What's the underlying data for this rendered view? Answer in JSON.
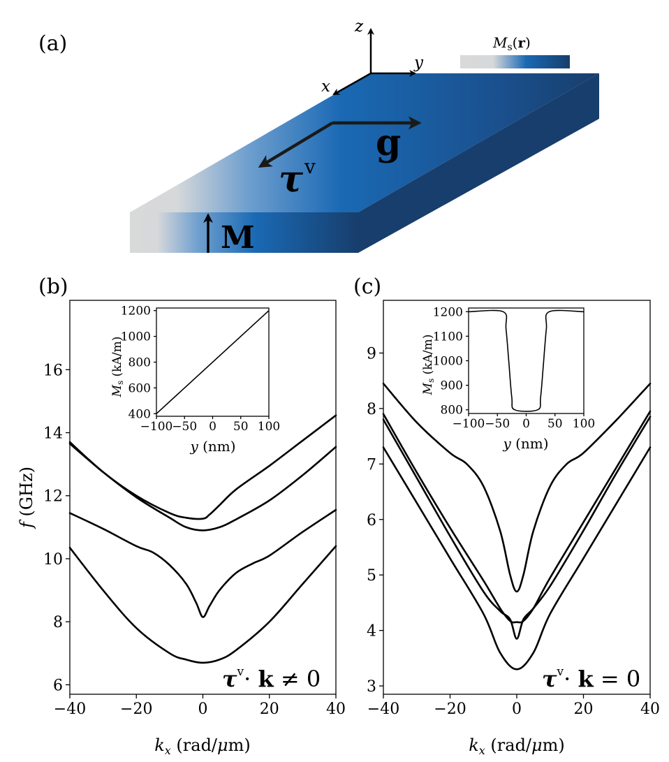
{
  "panels": {
    "a": {
      "label": "(a)",
      "axis_x": "x",
      "axis_y": "y",
      "axis_z": "z",
      "colorbar_label": "Ms(r)",
      "vector_g": "g",
      "vector_tau": "τ",
      "vector_tau_sup": "v",
      "vector_M": "M",
      "colors": {
        "light": "#d9d9d9",
        "mid": "#1763b0",
        "dark": "#173e6c"
      }
    },
    "b": {
      "label": "(b)",
      "annotation": "τv· k ≠ 0"
    },
    "c": {
      "label": "(c)",
      "annotation": "τv· k = 0"
    }
  },
  "chart_data": [
    {
      "id": "b",
      "type": "line",
      "xlabel": "kx (rad/μm)",
      "ylabel": "f (GHz)",
      "xlim": [
        -40,
        40
      ],
      "ylim": [
        5.7,
        18.2
      ],
      "xticks": [
        -40,
        -20,
        0,
        20,
        40
      ],
      "yticks": [
        6,
        8,
        10,
        12,
        14,
        16
      ],
      "series": [
        {
          "x": [
            -40,
            -30,
            -20,
            -10,
            -5,
            0,
            5,
            10,
            20,
            30,
            40
          ],
          "values": [
            10.35,
            9.0,
            7.8,
            7.0,
            6.8,
            6.7,
            6.8,
            7.1,
            8.0,
            9.2,
            10.4
          ]
        },
        {
          "x": [
            -40,
            -30,
            -20,
            -15,
            -10,
            -5,
            -2,
            0,
            2,
            5,
            10,
            15,
            20,
            30,
            40
          ],
          "values": [
            11.45,
            10.95,
            10.4,
            10.2,
            9.8,
            9.2,
            8.6,
            8.15,
            8.5,
            9.0,
            9.55,
            9.85,
            10.1,
            10.85,
            11.55
          ]
        },
        {
          "x": [
            -40,
            -30,
            -20,
            -10,
            -5,
            0,
            5,
            10,
            20,
            30,
            40
          ],
          "values": [
            13.65,
            12.75,
            11.95,
            11.3,
            11.0,
            10.9,
            11.0,
            11.25,
            11.85,
            12.65,
            13.55
          ]
        },
        {
          "x": [
            -40,
            -30,
            -20,
            -10,
            -5,
            0,
            2,
            5,
            10,
            20,
            30,
            40
          ],
          "values": [
            13.7,
            12.75,
            12.0,
            11.45,
            11.3,
            11.27,
            11.4,
            11.7,
            12.2,
            12.95,
            13.75,
            14.55
          ]
        }
      ],
      "inset": {
        "type": "line",
        "xlabel": "y (nm)",
        "ylabel": "Ms (kA/m)",
        "xlim": [
          -100,
          100
        ],
        "ylim": [
          380,
          1220
        ],
        "xticks": [
          -100,
          -50,
          0,
          50,
          100
        ],
        "yticks": [
          400,
          600,
          800,
          1000,
          1200
        ],
        "series": [
          {
            "x": [
              -100,
              100
            ],
            "values": [
              400,
              1200
            ]
          }
        ]
      }
    },
    {
      "id": "c",
      "type": "line",
      "xlabel": "kx (rad/μm)",
      "ylabel": "",
      "xlim": [
        -40,
        40
      ],
      "ylim": [
        2.85,
        9.95
      ],
      "xticks": [
        -40,
        -20,
        0,
        20,
        40
      ],
      "yticks": [
        3,
        4,
        5,
        6,
        7,
        8,
        9
      ],
      "series": [
        {
          "x": [
            -40,
            -30,
            -20,
            -10,
            -5,
            0,
            5,
            10,
            20,
            30,
            40
          ],
          "values": [
            7.3,
            6.3,
            5.3,
            4.3,
            3.6,
            3.3,
            3.6,
            4.3,
            5.3,
            6.3,
            7.3
          ]
        },
        {
          "x": [
            -40,
            -30,
            -20,
            -10,
            -5,
            -2,
            0,
            2,
            5,
            10,
            20,
            30,
            40
          ],
          "values": [
            7.8,
            6.75,
            5.7,
            4.7,
            4.35,
            4.2,
            3.85,
            4.2,
            4.4,
            4.8,
            5.8,
            6.85,
            7.85
          ]
        },
        {
          "x": [
            -40,
            -30,
            -20,
            -10,
            -5,
            -2,
            0,
            2,
            5,
            10,
            20,
            30,
            40
          ],
          "values": [
            7.9,
            6.85,
            5.85,
            4.9,
            4.4,
            4.17,
            4.15,
            4.17,
            4.4,
            4.95,
            5.95,
            6.95,
            7.95
          ]
        },
        {
          "x": [
            -40,
            -30,
            -20,
            -15,
            -10,
            -5,
            -2,
            0,
            2,
            5,
            10,
            15,
            20,
            30,
            40
          ],
          "values": [
            8.45,
            7.75,
            7.2,
            7.0,
            6.6,
            5.8,
            5.0,
            4.7,
            5.0,
            5.8,
            6.6,
            7.0,
            7.2,
            7.8,
            8.45
          ]
        }
      ],
      "inset": {
        "type": "line",
        "xlabel": "y (nm)",
        "ylabel": "Ms (kA/m)",
        "xlim": [
          -100,
          100
        ],
        "ylim": [
          785,
          1215
        ],
        "xticks": [
          -100,
          -50,
          0,
          50,
          100
        ],
        "yticks": [
          800,
          900,
          1000,
          1100,
          1200
        ],
        "series": [
          {
            "x": [
              -100,
              -40,
              -35,
              -30,
              -25,
              -20,
              20,
              25,
              30,
              35,
              40,
              100
            ],
            "values": [
              1200,
              1200,
              1130,
              990,
              850,
              800,
              800,
              850,
              990,
              1130,
              1200,
              1200
            ]
          }
        ]
      }
    }
  ]
}
